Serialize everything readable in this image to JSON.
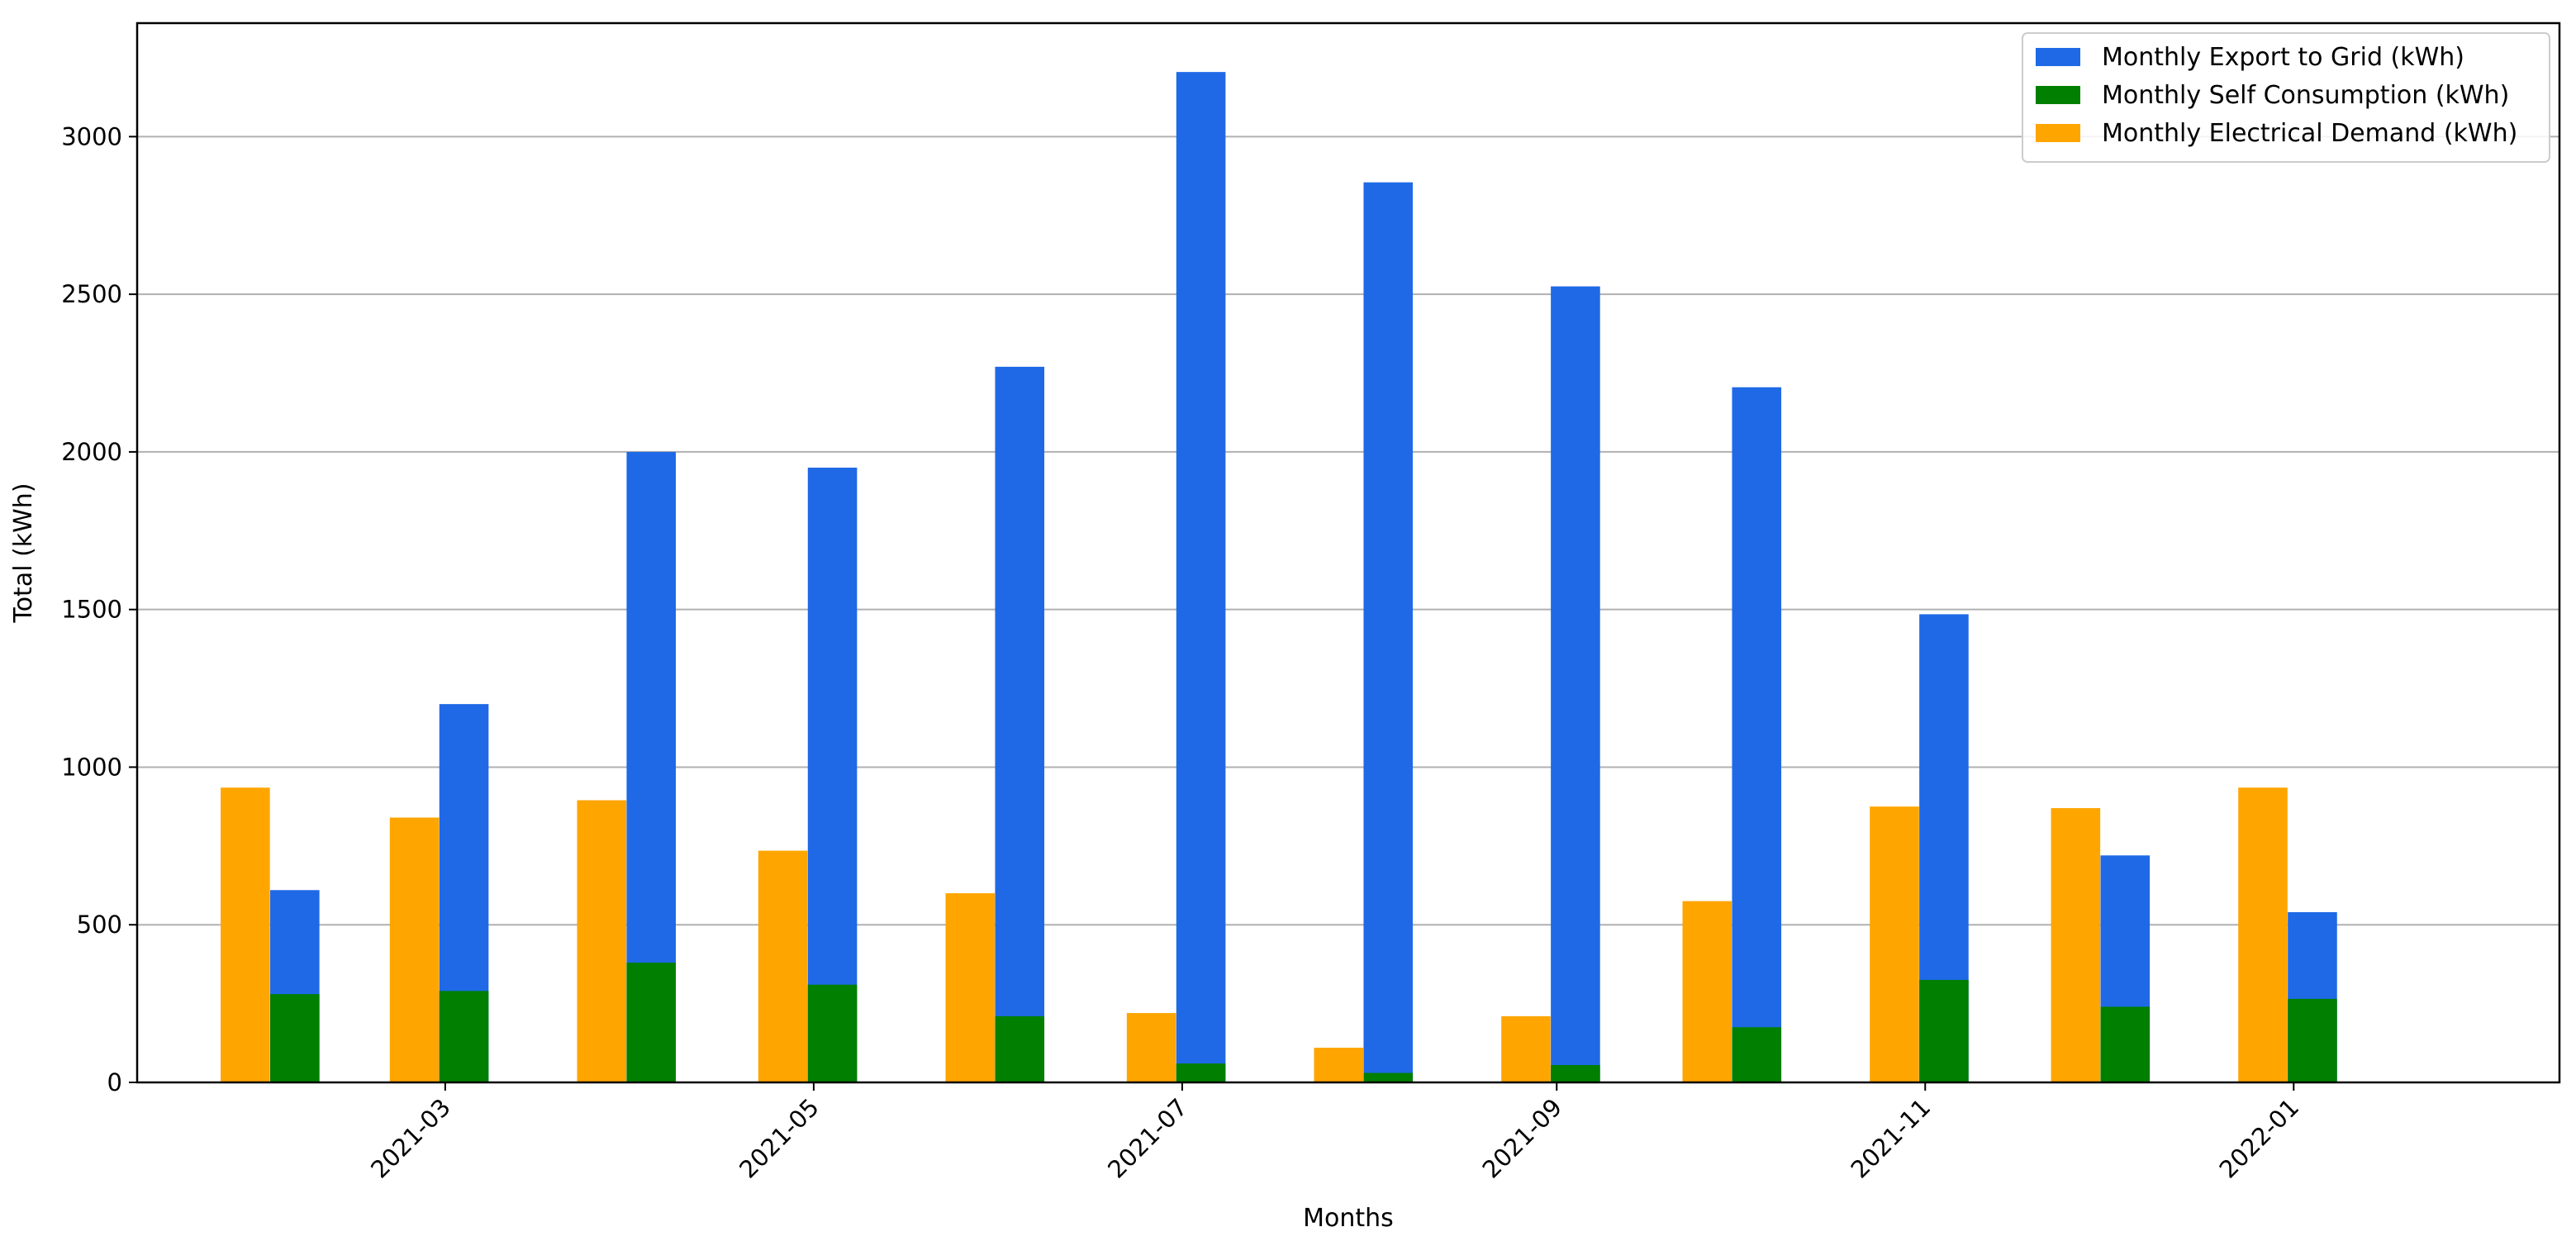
{
  "chart_data": {
    "type": "bar",
    "title": "",
    "xlabel": "Months",
    "ylabel": "Total (kWh)",
    "ylim": [
      0,
      3360
    ],
    "yticks": [
      0,
      500,
      1000,
      1500,
      2000,
      2500,
      3000
    ],
    "grid": "horizontal",
    "legend_position": "top-right",
    "x_axis_type": "date",
    "xlim": [
      "2021-01-09",
      "2022-02-14"
    ],
    "xtick_labels": [
      "2021-03",
      "2021-05",
      "2021-07",
      "2021-09",
      "2021-11",
      "2022-01"
    ],
    "xtick_dates": [
      "2021-03-01",
      "2021-05-01",
      "2021-07-01",
      "2021-09-01",
      "2021-11-01",
      "2022-01-01"
    ],
    "categories": [
      "2021-01-31",
      "2021-02-28",
      "2021-03-31",
      "2021-04-30",
      "2021-05-31",
      "2021-06-30",
      "2021-07-31",
      "2021-08-31",
      "2021-09-30",
      "2021-10-31",
      "2021-11-30",
      "2021-12-31"
    ],
    "series": [
      {
        "name": "Monthly Export to Grid (kWh)",
        "color": "#1f69e6",
        "values": [
          610,
          1200,
          2000,
          1950,
          2270,
          3205,
          2855,
          2525,
          2205,
          1485,
          720,
          540
        ]
      },
      {
        "name": "Monthly Self Consumption (kWh)",
        "color": "#007f00",
        "values": [
          280,
          290,
          380,
          310,
          210,
          60,
          30,
          55,
          175,
          325,
          240,
          265
        ]
      },
      {
        "name": "Monthly Electrical Demand (kWh)",
        "color": "#ffa500",
        "values": [
          935,
          840,
          895,
          735,
          600,
          220,
          110,
          210,
          575,
          875,
          870,
          935
        ]
      }
    ]
  }
}
